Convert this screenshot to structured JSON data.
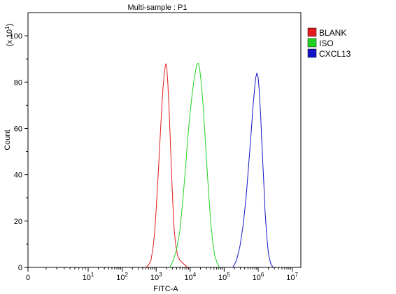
{
  "chart_data": {
    "type": "line",
    "title": "Multi-sample : P1",
    "xlabel": "FITC-A",
    "ylabel": "Count",
    "y_multiplier": "(x 10",
    "y_multiplier_exp": "1",
    "x_scale": "log",
    "xlim": [
      0,
      10000000
    ],
    "ylim": [
      0,
      110
    ],
    "x_ticks": [
      {
        "value": 0,
        "base": "0",
        "exp": ""
      },
      {
        "value": 10,
        "base": "10",
        "exp": "1"
      },
      {
        "value": 100,
        "base": "10",
        "exp": "2"
      },
      {
        "value": 1000,
        "base": "10",
        "exp": "3"
      },
      {
        "value": 10000,
        "base": "10",
        "exp": "4"
      },
      {
        "value": 100000,
        "base": "10",
        "exp": "5"
      },
      {
        "value": 1000000,
        "base": "10",
        "exp": "6"
      },
      {
        "value": 10000000,
        "base": "10",
        "exp": "7"
      }
    ],
    "y_ticks": [
      0,
      20,
      40,
      60,
      80,
      100
    ],
    "grid": false,
    "legend_position": "top-right",
    "series": [
      {
        "name": "BLANK",
        "color": "#e31a1c",
        "points": [
          [
            500,
            0
          ],
          [
            600,
            1
          ],
          [
            700,
            3
          ],
          [
            800,
            8
          ],
          [
            900,
            15
          ],
          [
            1000,
            25
          ],
          [
            1150,
            40
          ],
          [
            1300,
            55
          ],
          [
            1450,
            68
          ],
          [
            1600,
            78
          ],
          [
            1750,
            84
          ],
          [
            1850,
            87
          ],
          [
            1950,
            88
          ],
          [
            2050,
            86
          ],
          [
            2200,
            80
          ],
          [
            2400,
            68
          ],
          [
            2600,
            55
          ],
          [
            2850,
            40
          ],
          [
            3100,
            27
          ],
          [
            3400,
            16
          ],
          [
            3800,
            9
          ],
          [
            4300,
            5
          ],
          [
            5000,
            3
          ],
          [
            6000,
            2
          ],
          [
            7000,
            1
          ],
          [
            8500,
            0
          ]
        ]
      },
      {
        "name": "ISO",
        "color": "#1fd31f",
        "points": [
          [
            2500,
            0
          ],
          [
            3200,
            3
          ],
          [
            4000,
            8
          ],
          [
            5000,
            16
          ],
          [
            6000,
            28
          ],
          [
            7200,
            42
          ],
          [
            8500,
            56
          ],
          [
            10000,
            67
          ],
          [
            11500,
            75
          ],
          [
            13000,
            81
          ],
          [
            14500,
            85
          ],
          [
            16000,
            88
          ],
          [
            17500,
            88
          ],
          [
            19000,
            86
          ],
          [
            21000,
            80
          ],
          [
            24000,
            70
          ],
          [
            27000,
            58
          ],
          [
            31000,
            44
          ],
          [
            35000,
            32
          ],
          [
            40000,
            20
          ],
          [
            46000,
            11
          ],
          [
            53000,
            5
          ],
          [
            62000,
            2
          ],
          [
            72000,
            0
          ]
        ]
      },
      {
        "name": "CXCL13",
        "color": "#1414c8",
        "points": [
          [
            180000,
            0
          ],
          [
            230000,
            3
          ],
          [
            290000,
            9
          ],
          [
            360000,
            18
          ],
          [
            440000,
            30
          ],
          [
            530000,
            45
          ],
          [
            620000,
            58
          ],
          [
            700000,
            69
          ],
          [
            780000,
            77
          ],
          [
            850000,
            82
          ],
          [
            920000,
            84
          ],
          [
            1000000,
            82
          ],
          [
            1080000,
            76
          ],
          [
            1180000,
            66
          ],
          [
            1300000,
            52
          ],
          [
            1450000,
            38
          ],
          [
            1600000,
            24
          ],
          [
            1800000,
            13
          ],
          [
            2000000,
            6
          ],
          [
            2300000,
            2
          ],
          [
            2700000,
            0
          ]
        ]
      }
    ]
  }
}
